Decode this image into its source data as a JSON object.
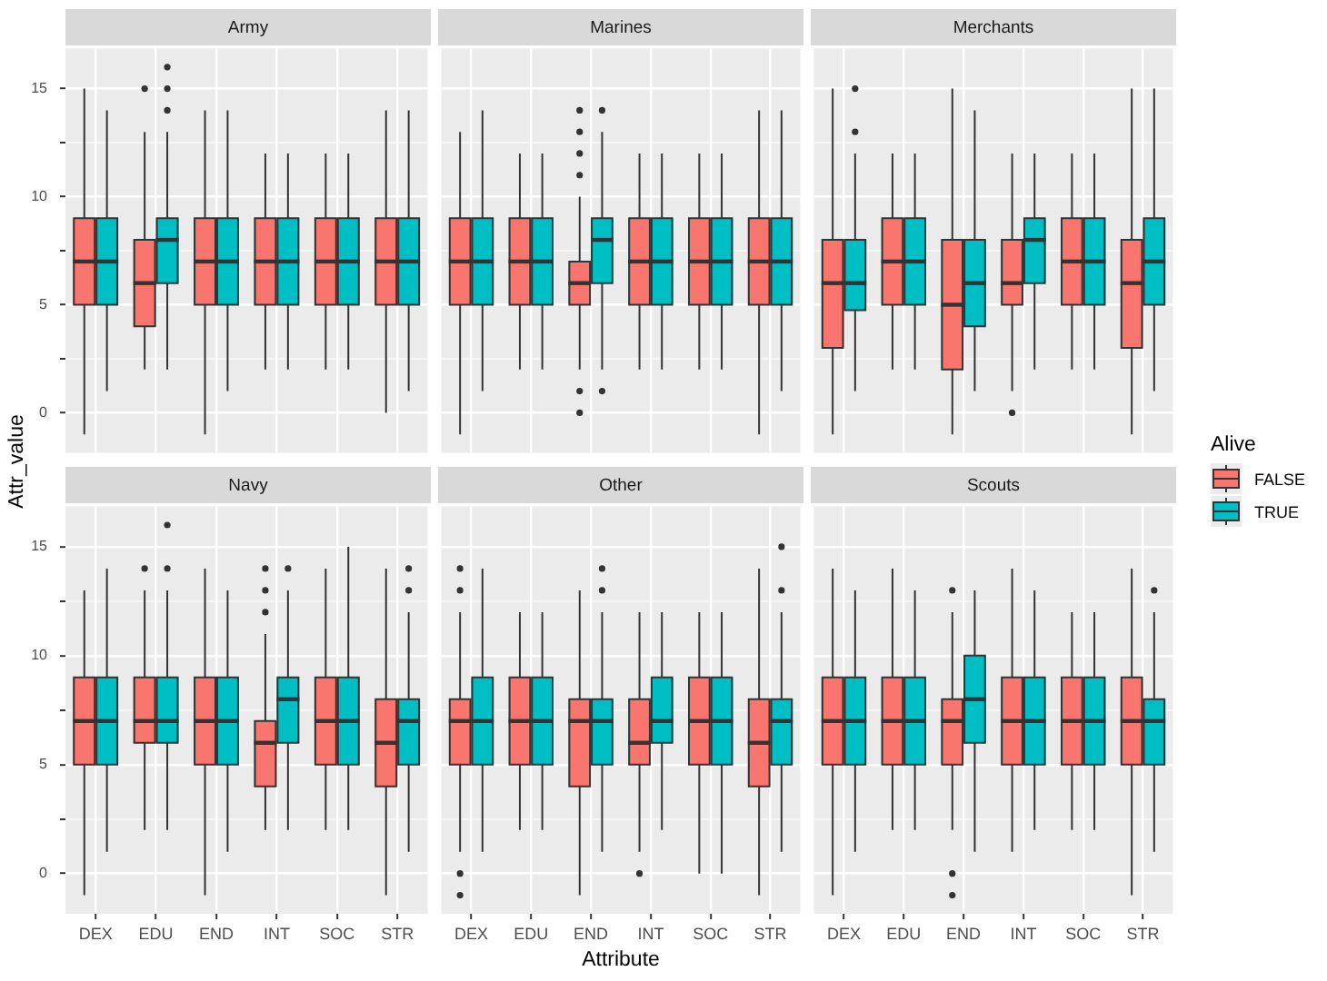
{
  "chart_data": [
    {
      "type": "box",
      "title": "Army",
      "categories": [
        "DEX",
        "EDU",
        "END",
        "INT",
        "SOC",
        "STR"
      ],
      "ylim": [
        -1.85,
        16.85
      ],
      "yticks": [
        0,
        {
          "value": 2.5,
          "label": null
        },
        5,
        {
          "value": 7.5,
          "label": null
        },
        10,
        {
          "value": 12.5,
          "label": null
        },
        15
      ],
      "grid": true,
      "tick_labels": "y",
      "series": [
        {
          "color": "#f8766d",
          "boxes": [
            {
              "low": -1,
              "q1": 5,
              "median": 7,
              "q3": 9,
              "high": 15
            },
            {
              "low": 2,
              "q1": 4,
              "median": 6,
              "q3": 8,
              "high": 13,
              "outliers": [
                15
              ]
            },
            {
              "low": -1,
              "q1": 5,
              "median": 7,
              "q3": 9,
              "high": 14
            },
            {
              "low": 2,
              "q1": 5,
              "median": 7,
              "q3": 9,
              "high": 12
            },
            {
              "low": 2,
              "q1": 5,
              "median": 7,
              "q3": 9,
              "high": 12
            },
            {
              "low": 0,
              "q1": 5,
              "median": 7,
              "q3": 9,
              "high": 14
            }
          ]
        },
        {
          "color": "#00bfc4",
          "boxes": [
            {
              "low": 1,
              "q1": 5,
              "median": 7,
              "q3": 9,
              "high": 14
            },
            {
              "low": 2,
              "q1": 6,
              "median": 8,
              "q3": 9,
              "high": 13,
              "outliers": [
                14,
                15,
                16
              ]
            },
            {
              "low": 1,
              "q1": 5,
              "median": 7,
              "q3": 9,
              "high": 14
            },
            {
              "low": 2,
              "q1": 5,
              "median": 7,
              "q3": 9,
              "high": 12
            },
            {
              "low": 2,
              "q1": 5,
              "median": 7,
              "q3": 9,
              "high": 12
            },
            {
              "low": 1,
              "q1": 5,
              "median": 7,
              "q3": 9,
              "high": 14
            }
          ]
        }
      ]
    },
    {
      "type": "box",
      "title": "Marines",
      "categories": [
        "DEX",
        "EDU",
        "END",
        "INT",
        "SOC",
        "STR"
      ],
      "ylim": [
        -1.85,
        16.85
      ],
      "yticks": [
        0,
        {
          "value": 2.5,
          "label": null
        },
        5,
        {
          "value": 7.5,
          "label": null
        },
        10,
        {
          "value": 12.5,
          "label": null
        },
        15
      ],
      "grid": true,
      "tick_labels": false,
      "series": [
        {
          "color": "#f8766d",
          "boxes": [
            {
              "low": -1,
              "q1": 5,
              "median": 7,
              "q3": 9,
              "high": 13
            },
            {
              "low": 2,
              "q1": 5,
              "median": 7,
              "q3": 9,
              "high": 12
            },
            {
              "low": 2,
              "q1": 5,
              "median": 6,
              "q3": 7,
              "high": 10,
              "outliers": [
                0,
                1,
                11,
                12,
                13,
                14
              ]
            },
            {
              "low": 2,
              "q1": 5,
              "median": 7,
              "q3": 9,
              "high": 12
            },
            {
              "low": 2,
              "q1": 5,
              "median": 7,
              "q3": 9,
              "high": 12
            },
            {
              "low": -1,
              "q1": 5,
              "median": 7,
              "q3": 9,
              "high": 14
            }
          ]
        },
        {
          "color": "#00bfc4",
          "boxes": [
            {
              "low": 1,
              "q1": 5,
              "median": 7,
              "q3": 9,
              "high": 14
            },
            {
              "low": 2,
              "q1": 5,
              "median": 7,
              "q3": 9,
              "high": 12
            },
            {
              "low": 2,
              "q1": 6,
              "median": 8,
              "q3": 9,
              "high": 13,
              "outliers": [
                1,
                14
              ]
            },
            {
              "low": 2,
              "q1": 5,
              "median": 7,
              "q3": 9,
              "high": 12
            },
            {
              "low": 2,
              "q1": 5,
              "median": 7,
              "q3": 9,
              "high": 12
            },
            {
              "low": 1,
              "q1": 5,
              "median": 7,
              "q3": 9,
              "high": 14
            }
          ]
        }
      ]
    },
    {
      "type": "box",
      "title": "Merchants",
      "categories": [
        "DEX",
        "EDU",
        "END",
        "INT",
        "SOC",
        "STR"
      ],
      "ylim": [
        -1.85,
        16.85
      ],
      "yticks": [
        0,
        {
          "value": 2.5,
          "label": null
        },
        5,
        {
          "value": 7.5,
          "label": null
        },
        10,
        {
          "value": 12.5,
          "label": null
        },
        15
      ],
      "grid": true,
      "tick_labels": false,
      "series": [
        {
          "color": "#f8766d",
          "boxes": [
            {
              "low": -1,
              "q1": 3,
              "median": 6,
              "q3": 8,
              "high": 15
            },
            {
              "low": 2,
              "q1": 5,
              "median": 7,
              "q3": 9,
              "high": 12
            },
            {
              "low": -1,
              "q1": 2,
              "median": 5,
              "q3": 8,
              "high": 15
            },
            {
              "low": 1,
              "q1": 5,
              "median": 6,
              "q3": 8,
              "high": 12,
              "outliers": [
                0
              ]
            },
            {
              "low": 2,
              "q1": 5,
              "median": 7,
              "q3": 9,
              "high": 12
            },
            {
              "low": -1,
              "q1": 3,
              "median": 6,
              "q3": 8,
              "high": 15
            }
          ]
        },
        {
          "color": "#00bfc4",
          "boxes": [
            {
              "low": 1,
              "q1": 4.75,
              "median": 6,
              "q3": 8,
              "high": 12,
              "outliers": [
                13,
                15
              ]
            },
            {
              "low": 2,
              "q1": 5,
              "median": 7,
              "q3": 9,
              "high": 12
            },
            {
              "low": 1,
              "q1": 4,
              "median": 6,
              "q3": 8,
              "high": 14
            },
            {
              "low": 2,
              "q1": 6,
              "median": 8,
              "q3": 9,
              "high": 12
            },
            {
              "low": 2,
              "q1": 5,
              "median": 7,
              "q3": 9,
              "high": 12
            },
            {
              "low": 1,
              "q1": 5,
              "median": 7,
              "q3": 9,
              "high": 15
            }
          ]
        }
      ]
    },
    {
      "type": "box",
      "title": "Navy",
      "ylabel": "Attr_value",
      "categories": [
        "DEX",
        "EDU",
        "END",
        "INT",
        "SOC",
        "STR"
      ],
      "ylim": [
        -1.85,
        16.85
      ],
      "yticks": [
        0,
        {
          "value": 2.5,
          "label": null
        },
        5,
        {
          "value": 7.5,
          "label": null
        },
        10,
        {
          "value": 12.5,
          "label": null
        },
        15
      ],
      "grid": true,
      "series": [
        {
          "color": "#f8766d",
          "boxes": [
            {
              "low": -1,
              "q1": 5,
              "median": 7,
              "q3": 9,
              "high": 13
            },
            {
              "low": 2,
              "q1": 6,
              "median": 7,
              "q3": 9,
              "high": 13,
              "outliers": [
                14
              ]
            },
            {
              "low": -1,
              "q1": 5,
              "median": 7,
              "q3": 9,
              "high": 14
            },
            {
              "low": 2,
              "q1": 4,
              "median": 6,
              "q3": 7,
              "high": 11,
              "outliers": [
                12,
                13,
                14
              ]
            },
            {
              "low": 2,
              "q1": 5,
              "median": 7,
              "q3": 9,
              "high": 14
            },
            {
              "low": -1,
              "q1": 4,
              "median": 6,
              "q3": 8,
              "high": 14
            }
          ]
        },
        {
          "color": "#00bfc4",
          "boxes": [
            {
              "low": 1,
              "q1": 5,
              "median": 7,
              "q3": 9,
              "high": 14
            },
            {
              "low": 2,
              "q1": 6,
              "median": 7,
              "q3": 9,
              "high": 13,
              "outliers": [
                14,
                16
              ]
            },
            {
              "low": 1,
              "q1": 5,
              "median": 7,
              "q3": 9,
              "high": 13
            },
            {
              "low": 2,
              "q1": 6,
              "median": 8,
              "q3": 9,
              "high": 13,
              "outliers": [
                14
              ]
            },
            {
              "low": 2,
              "q1": 5,
              "median": 7,
              "q3": 9,
              "high": 15
            },
            {
              "low": 1,
              "q1": 5,
              "median": 7,
              "q3": 8,
              "high": 12,
              "outliers": [
                13,
                14
              ]
            }
          ]
        }
      ]
    },
    {
      "type": "box",
      "title": "Other",
      "xlabel": "Attribute",
      "categories": [
        "DEX",
        "EDU",
        "END",
        "INT",
        "SOC",
        "STR"
      ],
      "ylim": [
        -1.85,
        16.85
      ],
      "yticks": [
        0,
        {
          "value": 2.5,
          "label": null
        },
        5,
        {
          "value": 7.5,
          "label": null
        },
        10,
        {
          "value": 12.5,
          "label": null
        },
        15
      ],
      "grid": true,
      "tick_labels": "x",
      "series": [
        {
          "color": "#f8766d",
          "boxes": [
            {
              "low": 1,
              "q1": 5,
              "median": 7,
              "q3": 8,
              "high": 12,
              "outliers": [
                -1,
                0,
                13,
                14
              ]
            },
            {
              "low": 2,
              "q1": 5,
              "median": 7,
              "q3": 9,
              "high": 12
            },
            {
              "low": -1,
              "q1": 4,
              "median": 7,
              "q3": 8,
              "high": 13
            },
            {
              "low": 1,
              "q1": 5,
              "median": 6,
              "q3": 8,
              "high": 12,
              "outliers": [
                0
              ]
            },
            {
              "low": 0,
              "q1": 5,
              "median": 7,
              "q3": 9,
              "high": 12
            },
            {
              "low": -1,
              "q1": 4,
              "median": 6,
              "q3": 8,
              "high": 14
            }
          ]
        },
        {
          "color": "#00bfc4",
          "boxes": [
            {
              "low": 1,
              "q1": 5,
              "median": 7,
              "q3": 9,
              "high": 14
            },
            {
              "low": 2,
              "q1": 5,
              "median": 7,
              "q3": 9,
              "high": 12
            },
            {
              "low": 1,
              "q1": 5,
              "median": 7,
              "q3": 8,
              "high": 12,
              "outliers": [
                13,
                14
              ]
            },
            {
              "low": 2,
              "q1": 6,
              "median": 7,
              "q3": 9,
              "high": 12
            },
            {
              "low": 0,
              "q1": 5,
              "median": 7,
              "q3": 9,
              "high": 12
            },
            {
              "low": 1,
              "q1": 5,
              "median": 7,
              "q3": 8,
              "high": 12,
              "outliers": [
                13,
                15
              ]
            }
          ]
        }
      ]
    },
    {
      "type": "box",
      "title": "Scouts",
      "legend_title": "Alive",
      "legend": "right",
      "categories": [
        "DEX",
        "EDU",
        "END",
        "INT",
        "SOC",
        "STR"
      ],
      "ylim": [
        -1.85,
        16.85
      ],
      "yticks": [
        0,
        {
          "value": 2.5,
          "label": null
        },
        5,
        {
          "value": 7.5,
          "label": null
        },
        10,
        {
          "value": 12.5,
          "label": null
        },
        15
      ],
      "grid": true,
      "tick_labels": "x",
      "series": [
        {
          "name": "FALSE",
          "color": "#f8766d",
          "boxes": [
            {
              "low": -1,
              "q1": 5,
              "median": 7,
              "q3": 9,
              "high": 14
            },
            {
              "low": 2,
              "q1": 5,
              "median": 7,
              "q3": 9,
              "high": 14
            },
            {
              "low": 2,
              "q1": 5,
              "median": 7,
              "q3": 8,
              "high": 12,
              "outliers": [
                -1,
                0,
                13
              ]
            },
            {
              "low": 1,
              "q1": 5,
              "median": 7,
              "q3": 9,
              "high": 14
            },
            {
              "low": 2,
              "q1": 5,
              "median": 7,
              "q3": 9,
              "high": 12
            },
            {
              "low": -1,
              "q1": 5,
              "median": 7,
              "q3": 9,
              "high": 14
            }
          ]
        },
        {
          "name": "TRUE",
          "color": "#00bfc4",
          "boxes": [
            {
              "low": 1,
              "q1": 5,
              "median": 7,
              "q3": 9,
              "high": 13
            },
            {
              "low": 2,
              "q1": 5,
              "median": 7,
              "q3": 9,
              "high": 13
            },
            {
              "low": 1,
              "q1": 6,
              "median": 8,
              "q3": 10,
              "high": 13
            },
            {
              "low": 2,
              "q1": 5,
              "median": 7,
              "q3": 9,
              "high": 13
            },
            {
              "low": 2,
              "q1": 5,
              "median": 7,
              "q3": 9,
              "high": 12
            },
            {
              "low": 1,
              "q1": 5,
              "median": 7,
              "q3": 8,
              "high": 12,
              "outliers": [
                13
              ]
            }
          ]
        }
      ]
    }
  ]
}
